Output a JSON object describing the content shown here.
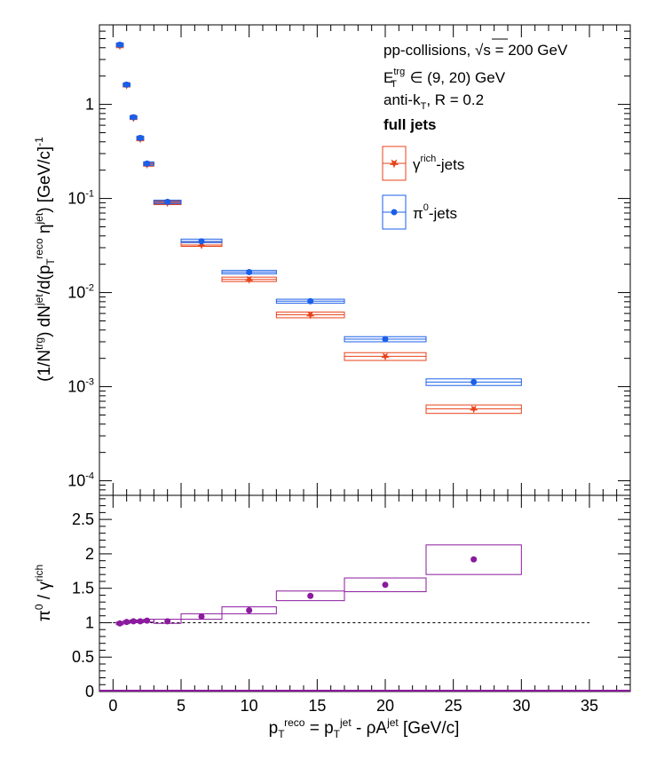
{
  "legend": {
    "line1_pre": "pp-collisions, ",
    "line1_sqrt": "√s",
    "line1_post": " = 200 GeV",
    "line2_E": "E",
    "line2_sup": "trg",
    "line2_sub": "T",
    "line2_post": " ∈ (9, 20) GeV",
    "line3_pre": "anti-k",
    "line3_sub": "T",
    "line3_post": ", R = 0.2",
    "line4": "full jets",
    "gamma_base": "γ",
    "gamma_sup": "rich",
    "gamma_post": "-jets",
    "pi_base": "π",
    "pi_sup": "0",
    "pi_post": "-jets"
  },
  "axes": {
    "top_ylabel": "(1/N^{trg}) dN^{jet}/d(p_{T}^{reco} η^{jet}) [GeV/c]^{-1}",
    "bottom_ylabel": "π^{0} / γ^{rich}",
    "xlabel": "p_{T}^{reco} = p_{T}^{jet} - ρA^{jet} [GeV/c]"
  },
  "chart_data": [
    {
      "type": "scatter",
      "panel": "top",
      "yscale": "log",
      "xlim": [
        -1,
        38
      ],
      "ylim": [
        7e-05,
        7
      ],
      "grid": false,
      "yticks": [
        "10^{-4}",
        "10^{-3}",
        "10^{-2}",
        "10^{-1}",
        "1"
      ],
      "x": [
        0.5,
        1.0,
        1.5,
        2.0,
        2.5,
        4.0,
        6.5,
        10.0,
        14.5,
        20.0,
        26.5
      ],
      "xbins": [
        [
          0.25,
          0.75
        ],
        [
          0.75,
          1.25
        ],
        [
          1.25,
          1.75
        ],
        [
          1.75,
          2.25
        ],
        [
          2.25,
          3.0
        ],
        [
          3.0,
          5.0
        ],
        [
          5.0,
          8.0
        ],
        [
          8.0,
          12.0
        ],
        [
          12.0,
          17.0
        ],
        [
          17.0,
          23.0
        ],
        [
          23.0,
          30.0
        ]
      ],
      "series": [
        {
          "name": "γ^{rich}-jets",
          "color": "#e8421a",
          "marker": "star",
          "values": [
            4.2,
            1.6,
            0.72,
            0.43,
            0.23,
            0.09,
            0.032,
            0.0138,
            0.0058,
            0.0021,
            0.00058
          ],
          "sys_low": [
            4.0,
            1.53,
            0.69,
            0.41,
            0.22,
            0.086,
            0.031,
            0.0131,
            0.0054,
            0.0019,
            0.00052
          ],
          "sys_high": [
            4.4,
            1.67,
            0.75,
            0.45,
            0.24,
            0.094,
            0.034,
            0.0146,
            0.0062,
            0.0023,
            0.00064
          ]
        },
        {
          "name": "π^{0}-jets",
          "color": "#1a5fe8",
          "marker": "circle",
          "values": [
            4.3,
            1.62,
            0.73,
            0.44,
            0.235,
            0.092,
            0.035,
            0.0165,
            0.0081,
            0.0032,
            0.00112
          ],
          "sys_low": [
            4.1,
            1.55,
            0.7,
            0.42,
            0.225,
            0.088,
            0.034,
            0.0158,
            0.0077,
            0.003,
            0.00103
          ],
          "sys_high": [
            4.5,
            1.69,
            0.76,
            0.46,
            0.245,
            0.096,
            0.037,
            0.0172,
            0.0085,
            0.0034,
            0.00121
          ]
        }
      ]
    },
    {
      "type": "scatter",
      "panel": "bottom",
      "xlim": [
        -1,
        38
      ],
      "ylim": [
        0,
        2.85
      ],
      "xticks": [
        0,
        5,
        10,
        15,
        20,
        25,
        30,
        35
      ],
      "yticks": [
        0,
        0.5,
        1,
        1.5,
        2,
        2.5
      ],
      "reference_line": 1,
      "series": [
        {
          "name": "π^{0} / γ^{rich}",
          "color": "#8b1a9e",
          "x": [
            0.5,
            1.0,
            1.5,
            2.0,
            2.5,
            4.0,
            6.5,
            10.0,
            14.5,
            20.0,
            26.5
          ],
          "xbins": [
            [
              0.25,
              0.75
            ],
            [
              0.75,
              1.25
            ],
            [
              1.25,
              1.75
            ],
            [
              1.75,
              2.25
            ],
            [
              2.25,
              3.0
            ],
            [
              3.0,
              5.0
            ],
            [
              5.0,
              8.0
            ],
            [
              8.0,
              12.0
            ],
            [
              12.0,
              17.0
            ],
            [
              17.0,
              23.0
            ],
            [
              23.0,
              30.0
            ]
          ],
          "values": [
            0.99,
            1.01,
            1.02,
            1.02,
            1.03,
            1.02,
            1.09,
            1.18,
            1.39,
            1.55,
            1.92
          ],
          "sys_low": [
            0.97,
            0.99,
            1.0,
            1.0,
            1.01,
            0.99,
            1.05,
            1.13,
            1.32,
            1.45,
            1.7
          ],
          "sys_high": [
            1.01,
            1.03,
            1.04,
            1.04,
            1.05,
            1.05,
            1.13,
            1.23,
            1.46,
            1.65,
            2.13
          ]
        }
      ]
    }
  ]
}
